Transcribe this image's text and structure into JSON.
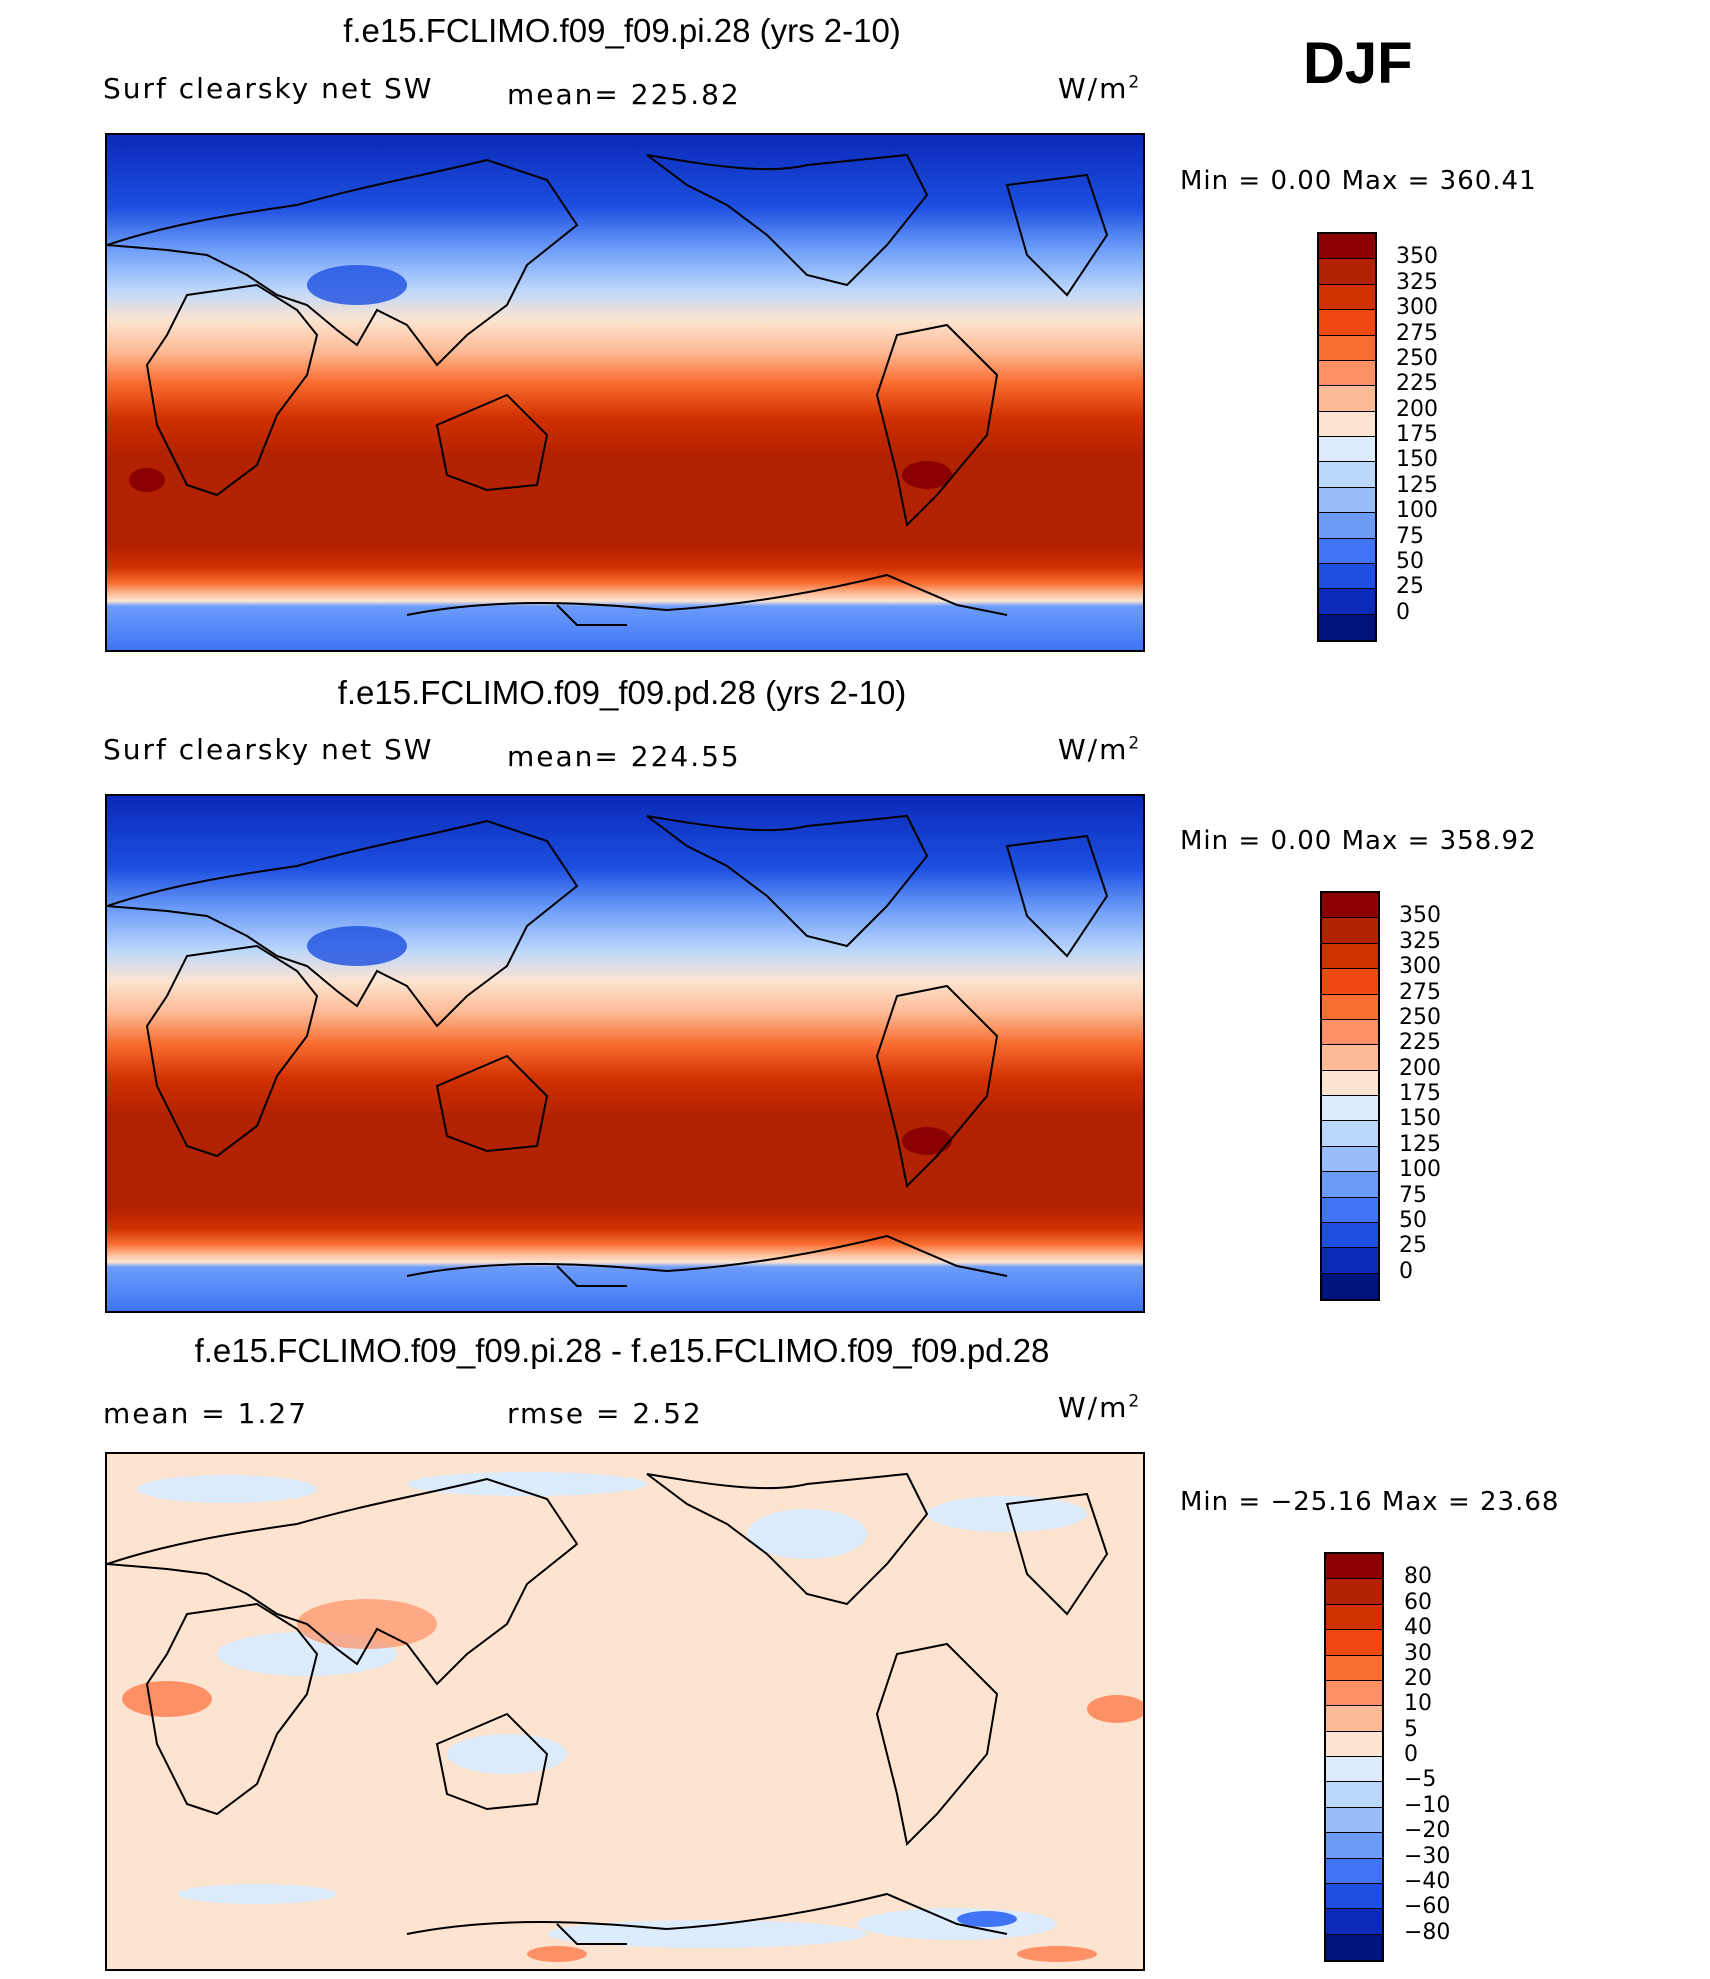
{
  "season": "DJF",
  "units_base": "W/m",
  "units_sup": "2",
  "panels": [
    {
      "title": "f.e15.FCLIMO.f09_f09.pi.28 (yrs 2-10)",
      "left_label": "Surf clearsky net SW",
      "center_label": "mean= 225.82",
      "minmax": "Min =    0.00 Max = 360.41",
      "levels": [
        "350",
        "325",
        "300",
        "275",
        "250",
        "225",
        "200",
        "175",
        "150",
        "125",
        "100",
        "75",
        "50",
        "25",
        "0"
      ],
      "colors": [
        "#8b0000",
        "#b22200",
        "#d13000",
        "#ee4a10",
        "#fa6e32",
        "#fd9064",
        "#fdbb96",
        "#fde4d0",
        "#dcecfc",
        "#bcd7fc",
        "#9abdfc",
        "#6c9cfa",
        "#3f75f5",
        "#1d4fe0",
        "#0b2ab8",
        "#001480"
      ]
    },
    {
      "title": "f.e15.FCLIMO.f09_f09.pd.28 (yrs 2-10)",
      "left_label": "Surf clearsky net SW",
      "center_label": "mean= 224.55",
      "minmax": "Min =    0.00 Max = 358.92",
      "levels": [
        "350",
        "325",
        "300",
        "275",
        "250",
        "225",
        "200",
        "175",
        "150",
        "125",
        "100",
        "75",
        "50",
        "25",
        "0"
      ],
      "colors": [
        "#8b0000",
        "#b22200",
        "#d13000",
        "#ee4a10",
        "#fa6e32",
        "#fd9064",
        "#fdbb96",
        "#fde4d0",
        "#dcecfc",
        "#bcd7fc",
        "#9abdfc",
        "#6c9cfa",
        "#3f75f5",
        "#1d4fe0",
        "#0b2ab8",
        "#001480"
      ]
    },
    {
      "title": "f.e15.FCLIMO.f09_f09.pi.28 - f.e15.FCLIMO.f09_f09.pd.28",
      "left_label": "mean =    1.27",
      "center_label": "rmse =    2.52",
      "minmax": "Min = −25.16 Max =   23.68",
      "levels": [
        "80",
        "60",
        "40",
        "30",
        "20",
        "10",
        "5",
        "0",
        "−5",
        "−10",
        "−20",
        "−30",
        "−40",
        "−60",
        "−80"
      ],
      "colors": [
        "#8b0000",
        "#b22200",
        "#d13000",
        "#ee4a10",
        "#fa6e32",
        "#fd9064",
        "#fdbb96",
        "#fde4d0",
        "#dcecfc",
        "#bcd7fc",
        "#9abdfc",
        "#6c9cfa",
        "#3f75f5",
        "#1d4fe0",
        "#0b2ab8",
        "#001480"
      ]
    }
  ],
  "fill_colors": {
    "polar": "#0b2ab8",
    "antarctic": "#3f75f5",
    "subtropic": "#b22200",
    "diff_background": "#fde4d0",
    "diff_negative": "#dcecfc",
    "diff_positive": "#fd9064"
  }
}
